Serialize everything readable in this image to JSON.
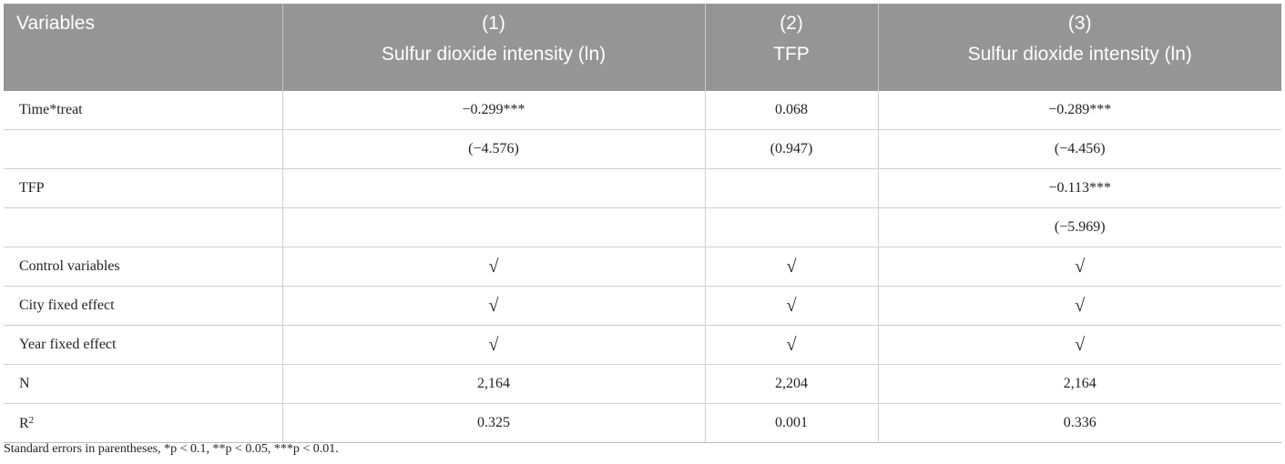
{
  "table": {
    "header": {
      "variables_label": "Variables",
      "columns": [
        {
          "number": "(1)",
          "dependent": "Sulfur dioxide intensity (ln)"
        },
        {
          "number": "(2)",
          "dependent": "TFP"
        },
        {
          "number": "(3)",
          "dependent": "Sulfur dioxide intensity (ln)"
        }
      ]
    },
    "rows": [
      {
        "label": "Time*treat",
        "values": [
          "−0.299***",
          "0.068",
          "−0.289***"
        ]
      },
      {
        "label": "",
        "values": [
          "(−4.576)",
          "(0.947)",
          "(−4.456)"
        ]
      },
      {
        "label": "TFP",
        "values": [
          "",
          "",
          "−0.113***"
        ]
      },
      {
        "label": "",
        "values": [
          "",
          "",
          "(−5.969)"
        ]
      },
      {
        "label": "Control variables",
        "values": [
          "√",
          "√",
          "√"
        ]
      },
      {
        "label": "City fixed effect",
        "values": [
          "√",
          "√",
          "√"
        ]
      },
      {
        "label": "Year fixed effect",
        "values": [
          "√",
          "√",
          "√"
        ]
      },
      {
        "label": "N",
        "values": [
          "2,164",
          "2,204",
          "2,164"
        ]
      },
      {
        "label": "R",
        "label_sup": "2",
        "values": [
          "0.325",
          "0.001",
          "0.336"
        ]
      }
    ]
  },
  "footnote": "Standard errors in parentheses, *p < 0.1, **p < 0.05, ***p < 0.01.",
  "colors": {
    "header_background": "#959595",
    "header_text": "#ffffff",
    "grid_line": "#cfcfcf",
    "body_text": "#222222"
  }
}
